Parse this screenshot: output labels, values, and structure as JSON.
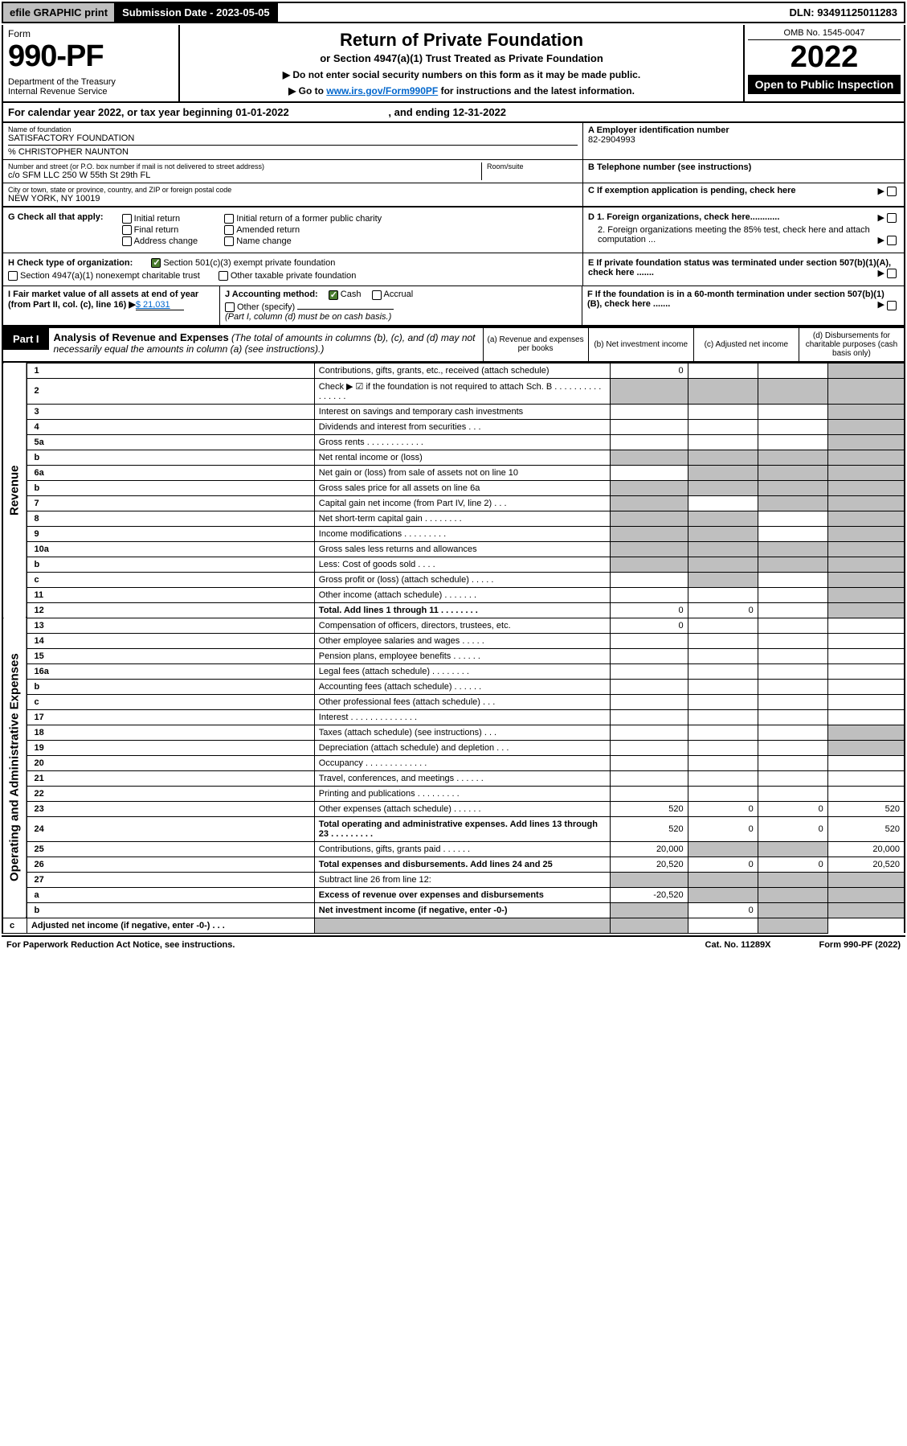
{
  "topbar": {
    "efile": "efile GRAPHIC print",
    "subdate_label": "Submission Date - ",
    "subdate": "2023-05-05",
    "dln_label": "DLN: ",
    "dln": "93491125011283"
  },
  "header": {
    "form_word": "Form",
    "form_num": "990-PF",
    "dept": "Department of the Treasury\nInternal Revenue Service",
    "title": "Return of Private Foundation",
    "subtitle": "or Section 4947(a)(1) Trust Treated as Private Foundation",
    "note1": "▶ Do not enter social security numbers on this form as it may be made public.",
    "note2_pre": "▶ Go to ",
    "note2_link": "www.irs.gov/Form990PF",
    "note2_post": " for instructions and the latest information.",
    "omb": "OMB No. 1545-0047",
    "year": "2022",
    "open": "Open to Public Inspection"
  },
  "calyear": {
    "text": "For calendar year 2022, or tax year beginning 01-01-2022",
    "ending": ", and ending 12-31-2022"
  },
  "identity": {
    "name_label": "Name of foundation",
    "name": "SATISFACTORY FOUNDATION",
    "care_of": "% CHRISTOPHER NAUNTON",
    "addr_label": "Number and street (or P.O. box number if mail is not delivered to street address)",
    "addr": "c/o SFM LLC 250 W 55th St 29th FL",
    "room_label": "Room/suite",
    "city_label": "City or town, state or province, country, and ZIP or foreign postal code",
    "city": "NEW YORK, NY  10019",
    "ein_label": "A Employer identification number",
    "ein": "82-2904993",
    "phone_label": "B Telephone number (see instructions)",
    "c_label": "C If exemption application is pending, check here"
  },
  "sectionG": {
    "label": "G Check all that apply:",
    "opts": [
      "Initial return",
      "Final return",
      "Address change",
      "Initial return of a former public charity",
      "Amended return",
      "Name change"
    ],
    "d1": "D 1. Foreign organizations, check here............",
    "d2": "2. Foreign organizations meeting the 85% test, check here and attach computation ..."
  },
  "sectionH": {
    "label": "H Check type of organization:",
    "opt1": "Section 501(c)(3) exempt private foundation",
    "opt2": "Section 4947(a)(1) nonexempt charitable trust",
    "opt3": "Other taxable private foundation",
    "e_label": "E  If private foundation status was terminated under section 507(b)(1)(A), check here ......."
  },
  "sectionI": {
    "i_label": "I Fair market value of all assets at end of year (from Part II, col. (c), line 16)",
    "i_val": "$  21,031",
    "j_label": "J Accounting method:",
    "j_cash": "Cash",
    "j_accrual": "Accrual",
    "j_other": "Other (specify)",
    "j_note": "(Part I, column (d) must be on cash basis.)",
    "f_label": "F  If the foundation is in a 60-month termination under section 507(b)(1)(B), check here ......."
  },
  "part1": {
    "label": "Part I",
    "title": "Analysis of Revenue and Expenses",
    "note": " (The total of amounts in columns (b), (c), and (d) may not necessarily equal the amounts in column (a) (see instructions).)",
    "col_a": "(a)   Revenue and expenses per books",
    "col_b": "(b)   Net investment income",
    "col_c": "(c)   Adjusted net income",
    "col_d": "(d)   Disbursements for charitable purposes (cash basis only)"
  },
  "rot_labels": {
    "revenue": "Revenue",
    "expenses": "Operating and Administrative Expenses"
  },
  "rows": [
    {
      "num": "1",
      "desc": "Contributions, gifts, grants, etc., received (attach schedule)",
      "a": "0",
      "greyD": true
    },
    {
      "num": "2",
      "desc": "Check ▶ ☑ if the foundation is not required to attach Sch. B      .   .   .   .   .   .   .   .   .   .   .   .   .   .   .   .",
      "greyA": true,
      "greyB": true,
      "greyC": true,
      "greyD": true
    },
    {
      "num": "3",
      "desc": "Interest on savings and temporary cash investments",
      "greyD": true
    },
    {
      "num": "4",
      "desc": "Dividends and interest from securities   .   .   .",
      "greyD": true
    },
    {
      "num": "5a",
      "desc": "Gross rents   .   .   .   .   .   .   .   .   .   .   .   .",
      "greyD": true
    },
    {
      "num": "b",
      "desc": "Net rental income or (loss)  ",
      "greyA": true,
      "greyB": true,
      "greyC": true,
      "greyD": true
    },
    {
      "num": "6a",
      "desc": "Net gain or (loss) from sale of assets not on line 10",
      "greyB": true,
      "greyC": true,
      "greyD": true
    },
    {
      "num": "b",
      "desc": "Gross sales price for all assets on line 6a",
      "greyA": true,
      "greyB": true,
      "greyC": true,
      "greyD": true
    },
    {
      "num": "7",
      "desc": "Capital gain net income (from Part IV, line 2)   .   .   .",
      "greyA": true,
      "greyC": true,
      "greyD": true
    },
    {
      "num": "8",
      "desc": "Net short-term capital gain   .   .   .   .   .   .   .   .",
      "greyA": true,
      "greyB": true,
      "greyD": true
    },
    {
      "num": "9",
      "desc": "Income modifications   .   .   .   .   .   .   .   .   .",
      "greyA": true,
      "greyB": true,
      "greyD": true
    },
    {
      "num": "10a",
      "desc": "Gross sales less returns and allowances",
      "greyA": true,
      "greyB": true,
      "greyC": true,
      "greyD": true
    },
    {
      "num": "b",
      "desc": "Less: Cost of goods sold   .   .   .   .",
      "greyA": true,
      "greyB": true,
      "greyC": true,
      "greyD": true
    },
    {
      "num": "c",
      "desc": "Gross profit or (loss) (attach schedule)   .   .   .   .   .",
      "greyB": true,
      "greyD": true
    },
    {
      "num": "11",
      "desc": "Other income (attach schedule)   .   .   .   .   .   .   .",
      "greyD": true
    },
    {
      "num": "12",
      "desc": "Total. Add lines 1 through 11   .   .   .   .   .   .   .   .",
      "bold": true,
      "a": "0",
      "b": "0",
      "greyD": true
    },
    {
      "num": "13",
      "desc": "Compensation of officers, directors, trustees, etc.",
      "a": "0"
    },
    {
      "num": "14",
      "desc": "Other employee salaries and wages   .   .   .   .   ."
    },
    {
      "num": "15",
      "desc": "Pension plans, employee benefits   .   .   .   .   .   ."
    },
    {
      "num": "16a",
      "desc": "Legal fees (attach schedule)   .   .   .   .   .   .   .   ."
    },
    {
      "num": "b",
      "desc": "Accounting fees (attach schedule)   .   .   .   .   .   ."
    },
    {
      "num": "c",
      "desc": "Other professional fees (attach schedule)   .   .   ."
    },
    {
      "num": "17",
      "desc": "Interest   .   .   .   .   .   .   .   .   .   .   .   .   .   ."
    },
    {
      "num": "18",
      "desc": "Taxes (attach schedule) (see instructions)   .   .   .",
      "greyD": true
    },
    {
      "num": "19",
      "desc": "Depreciation (attach schedule) and depletion   .   .   .",
      "greyD": true
    },
    {
      "num": "20",
      "desc": "Occupancy   .   .   .   .   .   .   .   .   .   .   .   .   ."
    },
    {
      "num": "21",
      "desc": "Travel, conferences, and meetings   .   .   .   .   .   ."
    },
    {
      "num": "22",
      "desc": "Printing and publications   .   .   .   .   .   .   .   .   ."
    },
    {
      "num": "23",
      "desc": "Other expenses (attach schedule)   .   .   .   .   .   .",
      "a": "520",
      "b": "0",
      "c": "0",
      "d": "520"
    },
    {
      "num": "24",
      "desc": "Total operating and administrative expenses. Add lines 13 through 23   .   .   .   .   .   .   .   .   .",
      "bold": true,
      "a": "520",
      "b": "0",
      "c": "0",
      "d": "520"
    },
    {
      "num": "25",
      "desc": "Contributions, gifts, grants paid   .   .   .   .   .   .",
      "a": "20,000",
      "greyB": true,
      "greyC": true,
      "d": "20,000"
    },
    {
      "num": "26",
      "desc": "Total expenses and disbursements. Add lines 24 and 25",
      "bold": true,
      "a": "20,520",
      "b": "0",
      "c": "0",
      "d": "20,520"
    },
    {
      "num": "27",
      "desc": "Subtract line 26 from line 12:",
      "greyA": true,
      "greyB": true,
      "greyC": true,
      "greyD": true
    },
    {
      "num": "a",
      "desc": "Excess of revenue over expenses and disbursements",
      "bold": true,
      "a": "-20,520",
      "greyB": true,
      "greyC": true,
      "greyD": true
    },
    {
      "num": "b",
      "desc": "Net investment income (if negative, enter -0-)",
      "bold": true,
      "greyA": true,
      "b": "0",
      "greyC": true,
      "greyD": true
    },
    {
      "num": "c",
      "desc": "Adjusted net income (if negative, enter -0-)   .   .   .",
      "bold": true,
      "greyA": true,
      "greyB": true,
      "greyD": true
    }
  ],
  "footer": {
    "left": "For Paperwork Reduction Act Notice, see instructions.",
    "mid": "Cat. No. 11289X",
    "right": "Form 990-PF (2022)"
  }
}
